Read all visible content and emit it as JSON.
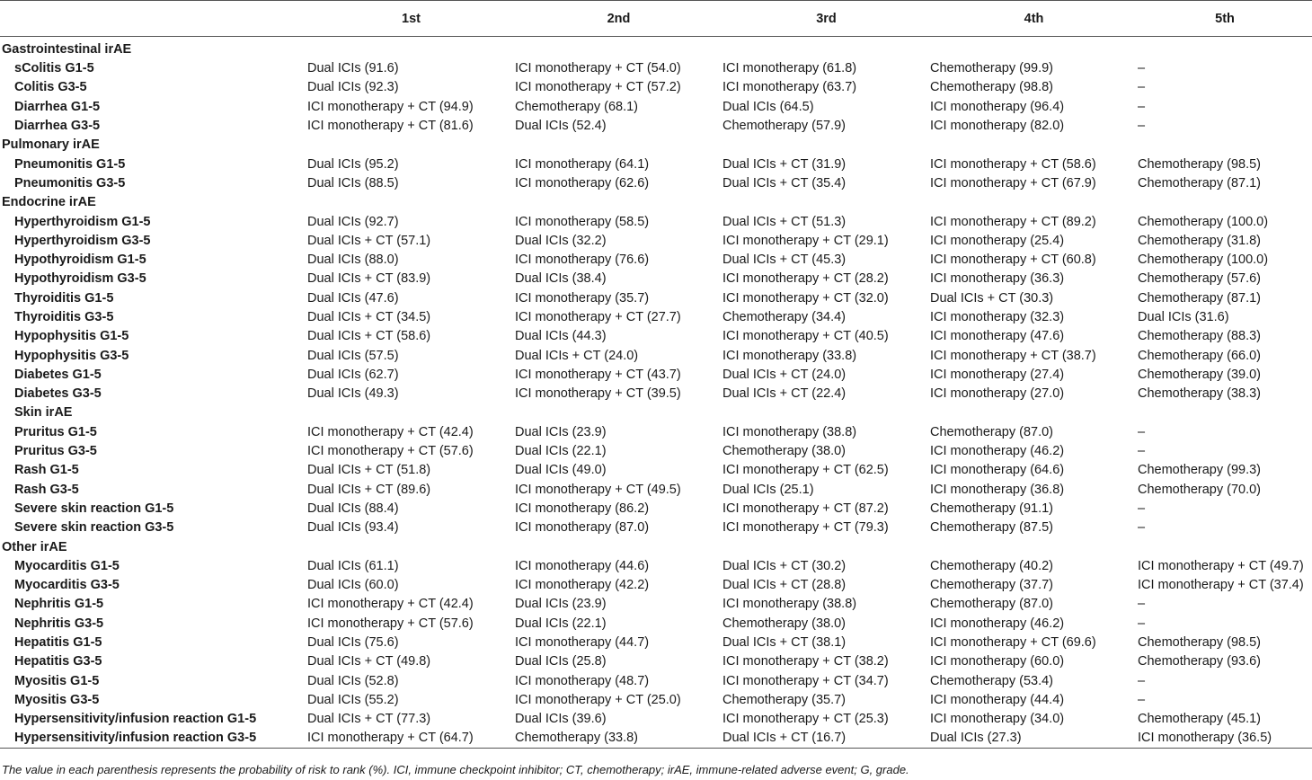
{
  "table": {
    "headers": [
      "",
      "1st",
      "2nd",
      "3rd",
      "4th",
      "5th"
    ],
    "rows": [
      {
        "type": "category",
        "label": "Gastrointestinal irAE"
      },
      {
        "type": "data",
        "label": "sColitis G1-5",
        "cells": [
          "Dual ICIs (91.6)",
          "ICI monotherapy + CT (54.0)",
          "ICI monotherapy (61.8)",
          "Chemotherapy (99.9)",
          "–"
        ]
      },
      {
        "type": "data",
        "label": "Colitis G3-5",
        "cells": [
          "Dual ICIs (92.3)",
          "ICI monotherapy + CT (57.2)",
          "ICI monotherapy (63.7)",
          "Chemotherapy (98.8)",
          "–"
        ]
      },
      {
        "type": "data",
        "label": "Diarrhea G1-5",
        "cells": [
          "ICI monotherapy + CT (94.9)",
          "Chemotherapy (68.1)",
          "Dual ICIs (64.5)",
          "ICI monotherapy (96.4)",
          "–"
        ]
      },
      {
        "type": "data",
        "label": "Diarrhea G3-5",
        "cells": [
          "ICI monotherapy + CT (81.6)",
          "Dual ICIs (52.4)",
          "Chemotherapy (57.9)",
          "ICI monotherapy (82.0)",
          "–"
        ]
      },
      {
        "type": "category",
        "label": "Pulmonary irAE"
      },
      {
        "type": "data",
        "label": "Pneumonitis G1-5",
        "cells": [
          "Dual ICIs (95.2)",
          "ICI monotherapy (64.1)",
          "Dual ICIs + CT (31.9)",
          "ICI monotherapy + CT (58.6)",
          "Chemotherapy (98.5)"
        ]
      },
      {
        "type": "data",
        "label": "Pneumonitis G3-5",
        "cells": [
          "Dual ICIs (88.5)",
          "ICI monotherapy (62.6)",
          "Dual ICIs + CT (35.4)",
          "ICI monotherapy + CT (67.9)",
          "Chemotherapy (87.1)"
        ]
      },
      {
        "type": "category",
        "label": "Endocrine irAE"
      },
      {
        "type": "data",
        "label": "Hyperthyroidism G1-5",
        "cells": [
          "Dual ICIs (92.7)",
          "ICI monotherapy (58.5)",
          "Dual ICIs + CT (51.3)",
          "ICI monotherapy + CT (89.2)",
          "Chemotherapy (100.0)"
        ]
      },
      {
        "type": "data",
        "label": "Hyperthyroidism G3-5",
        "cells": [
          "Dual ICIs + CT (57.1)",
          "Dual ICIs (32.2)",
          "ICI monotherapy + CT (29.1)",
          "ICI monotherapy (25.4)",
          "Chemotherapy (31.8)"
        ]
      },
      {
        "type": "data",
        "label": "Hypothyroidism G1-5",
        "cells": [
          "Dual ICIs (88.0)",
          "ICI monotherapy (76.6)",
          "Dual ICIs + CT (45.3)",
          "ICI monotherapy + CT (60.8)",
          "Chemotherapy (100.0)"
        ]
      },
      {
        "type": "data",
        "label": "Hypothyroidism G3-5",
        "cells": [
          "Dual ICIs + CT (83.9)",
          "Dual ICIs (38.4)",
          "ICI monotherapy + CT (28.2)",
          "ICI monotherapy (36.3)",
          "Chemotherapy (57.6)"
        ]
      },
      {
        "type": "data",
        "label": "Thyroiditis G1-5",
        "cells": [
          "Dual ICIs (47.6)",
          "ICI monotherapy (35.7)",
          "ICI monotherapy + CT (32.0)",
          "Dual ICIs + CT (30.3)",
          "Chemotherapy (87.1)"
        ]
      },
      {
        "type": "data",
        "label": "Thyroiditis G3-5",
        "cells": [
          "Dual ICIs + CT (34.5)",
          "ICI monotherapy + CT (27.7)",
          "Chemotherapy (34.4)",
          "ICI monotherapy (32.3)",
          "Dual ICIs (31.6)"
        ]
      },
      {
        "type": "data",
        "label": "Hypophysitis G1-5",
        "cells": [
          "Dual ICIs + CT (58.6)",
          "Dual ICIs (44.3)",
          "ICI monotherapy + CT (40.5)",
          "ICI monotherapy (47.6)",
          "Chemotherapy (88.3)"
        ]
      },
      {
        "type": "data",
        "label": "Hypophysitis G3-5",
        "cells": [
          "Dual ICIs (57.5)",
          "Dual ICIs + CT (24.0)",
          "ICI monotherapy (33.8)",
          "ICI monotherapy + CT (38.7)",
          "Chemotherapy (66.0)"
        ]
      },
      {
        "type": "data",
        "label": "Diabetes G1-5",
        "cells": [
          "Dual ICIs (62.7)",
          "ICI monotherapy + CT (43.7)",
          "Dual ICIs + CT (24.0)",
          "ICI monotherapy (27.4)",
          "Chemotherapy (39.0)"
        ]
      },
      {
        "type": "data",
        "label": "Diabetes G3-5",
        "cells": [
          "Dual ICIs (49.3)",
          "ICI monotherapy + CT (39.5)",
          "Dual ICIs + CT (22.4)",
          "ICI monotherapy (27.0)",
          "Chemotherapy (38.3)"
        ]
      },
      {
        "type": "subcategory",
        "label": "Skin irAE"
      },
      {
        "type": "data",
        "label": "Pruritus G1-5",
        "cells": [
          "ICI monotherapy + CT (42.4)",
          "Dual ICIs (23.9)",
          "ICI monotherapy (38.8)",
          "Chemotherapy (87.0)",
          "–"
        ]
      },
      {
        "type": "data",
        "label": "Pruritus G3-5",
        "cells": [
          "ICI monotherapy + CT (57.6)",
          "Dual ICIs (22.1)",
          "Chemotherapy (38.0)",
          "ICI monotherapy (46.2)",
          "–"
        ]
      },
      {
        "type": "data",
        "label": "Rash G1-5",
        "cells": [
          "Dual ICIs + CT (51.8)",
          "Dual ICIs (49.0)",
          "ICI monotherapy + CT (62.5)",
          "ICI monotherapy (64.6)",
          "Chemotherapy (99.3)"
        ]
      },
      {
        "type": "data",
        "label": "Rash G3-5",
        "cells": [
          "Dual ICIs + CT (89.6)",
          "ICI monotherapy + CT (49.5)",
          "Dual ICIs (25.1)",
          "ICI monotherapy (36.8)",
          "Chemotherapy (70.0)"
        ]
      },
      {
        "type": "data",
        "label": "Severe skin reaction G1-5",
        "cells": [
          "Dual ICIs (88.4)",
          "ICI monotherapy (86.2)",
          "ICI monotherapy + CT (87.2)",
          "Chemotherapy (91.1)",
          "–"
        ]
      },
      {
        "type": "data",
        "label": "Severe skin reaction G3-5",
        "cells": [
          "Dual ICIs (93.4)",
          "ICI monotherapy (87.0)",
          "ICI monotherapy + CT (79.3)",
          "Chemotherapy (87.5)",
          "–"
        ]
      },
      {
        "type": "category",
        "label": "Other irAE"
      },
      {
        "type": "data",
        "label": "Myocarditis G1-5",
        "cells": [
          "Dual ICIs (61.1)",
          "ICI monotherapy (44.6)",
          "Dual ICIs + CT (30.2)",
          "Chemotherapy (40.2)",
          "ICI monotherapy + CT (49.7)"
        ]
      },
      {
        "type": "data",
        "label": "Myocarditis G3-5",
        "cells": [
          "Dual ICIs (60.0)",
          "ICI monotherapy (42.2)",
          "Dual ICIs + CT (28.8)",
          "Chemotherapy (37.7)",
          "ICI monotherapy + CT (37.4)"
        ]
      },
      {
        "type": "data",
        "label": "Nephritis G1-5",
        "cells": [
          "ICI monotherapy + CT (42.4)",
          "Dual ICIs (23.9)",
          "ICI monotherapy (38.8)",
          "Chemotherapy (87.0)",
          "–"
        ]
      },
      {
        "type": "data",
        "label": "Nephritis G3-5",
        "cells": [
          "ICI monotherapy + CT (57.6)",
          "Dual ICIs (22.1)",
          "Chemotherapy (38.0)",
          "ICI monotherapy (46.2)",
          "–"
        ]
      },
      {
        "type": "data",
        "label": "Hepatitis G1-5",
        "cells": [
          "Dual ICIs (75.6)",
          "ICI monotherapy (44.7)",
          "Dual ICIs + CT (38.1)",
          "ICI monotherapy + CT (69.6)",
          "Chemotherapy (98.5)"
        ]
      },
      {
        "type": "data",
        "label": "Hepatitis G3-5",
        "cells": [
          "Dual ICIs + CT (49.8)",
          "Dual ICIs (25.8)",
          "ICI monotherapy + CT (38.2)",
          "ICI monotherapy (60.0)",
          "Chemotherapy (93.6)"
        ]
      },
      {
        "type": "data",
        "label": "Myositis G1-5",
        "cells": [
          "Dual ICIs (52.8)",
          "ICI monotherapy (48.7)",
          "ICI monotherapy + CT (34.7)",
          "Chemotherapy (53.4)",
          "–"
        ]
      },
      {
        "type": "data",
        "label": "Myositis G3-5",
        "cells": [
          "Dual ICIs (55.2)",
          "ICI monotherapy + CT (25.0)",
          "Chemotherapy (35.7)",
          "ICI monotherapy (44.4)",
          "–"
        ]
      },
      {
        "type": "data",
        "label": "Hypersensitivity/infusion reaction G1-5",
        "cells": [
          "Dual ICIs + CT (77.3)",
          "Dual ICIs (39.6)",
          "ICI monotherapy + CT (25.3)",
          "ICI monotherapy (34.0)",
          "Chemotherapy (45.1)"
        ]
      },
      {
        "type": "data",
        "label": "Hypersensitivity/infusion reaction G3-5",
        "cells": [
          "ICI monotherapy + CT (64.7)",
          "Chemotherapy (33.8)",
          "Dual ICIs + CT (16.7)",
          "Dual ICIs (27.3)",
          "ICI monotherapy (36.5)"
        ]
      }
    ]
  },
  "footnote": "The value in each parenthesis represents the probability of risk to rank (%). ICI, immune checkpoint inhibitor; CT, chemotherapy; irAE, immune-related adverse event; G, grade."
}
